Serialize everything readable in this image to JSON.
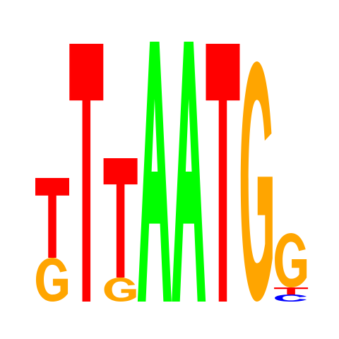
{
  "colors": {
    "A": "#00ff00",
    "C": "#0000ff",
    "G": "#ffa500",
    "T": "#ff0000"
  },
  "positions": [
    [
      {
        "base": "G",
        "bits": 0.62
      },
      {
        "base": "T",
        "bits": 1.13
      }
    ],
    [
      {
        "base": "T",
        "bits": 3.65
      }
    ],
    [
      {
        "base": "G",
        "bits": 0.34
      },
      {
        "base": "T",
        "bits": 1.69
      }
    ],
    [
      {
        "base": "A",
        "bits": 3.68
      }
    ],
    [
      {
        "base": "A",
        "bits": 3.68
      }
    ],
    [
      {
        "base": "T",
        "bits": 3.65
      }
    ],
    [
      {
        "base": "G",
        "bits": 3.4
      }
    ],
    [
      {
        "base": "C",
        "bits": 0.1
      },
      {
        "base": "T",
        "bits": 0.1
      },
      {
        "base": "G",
        "bits": 0.77
      }
    ]
  ]
}
